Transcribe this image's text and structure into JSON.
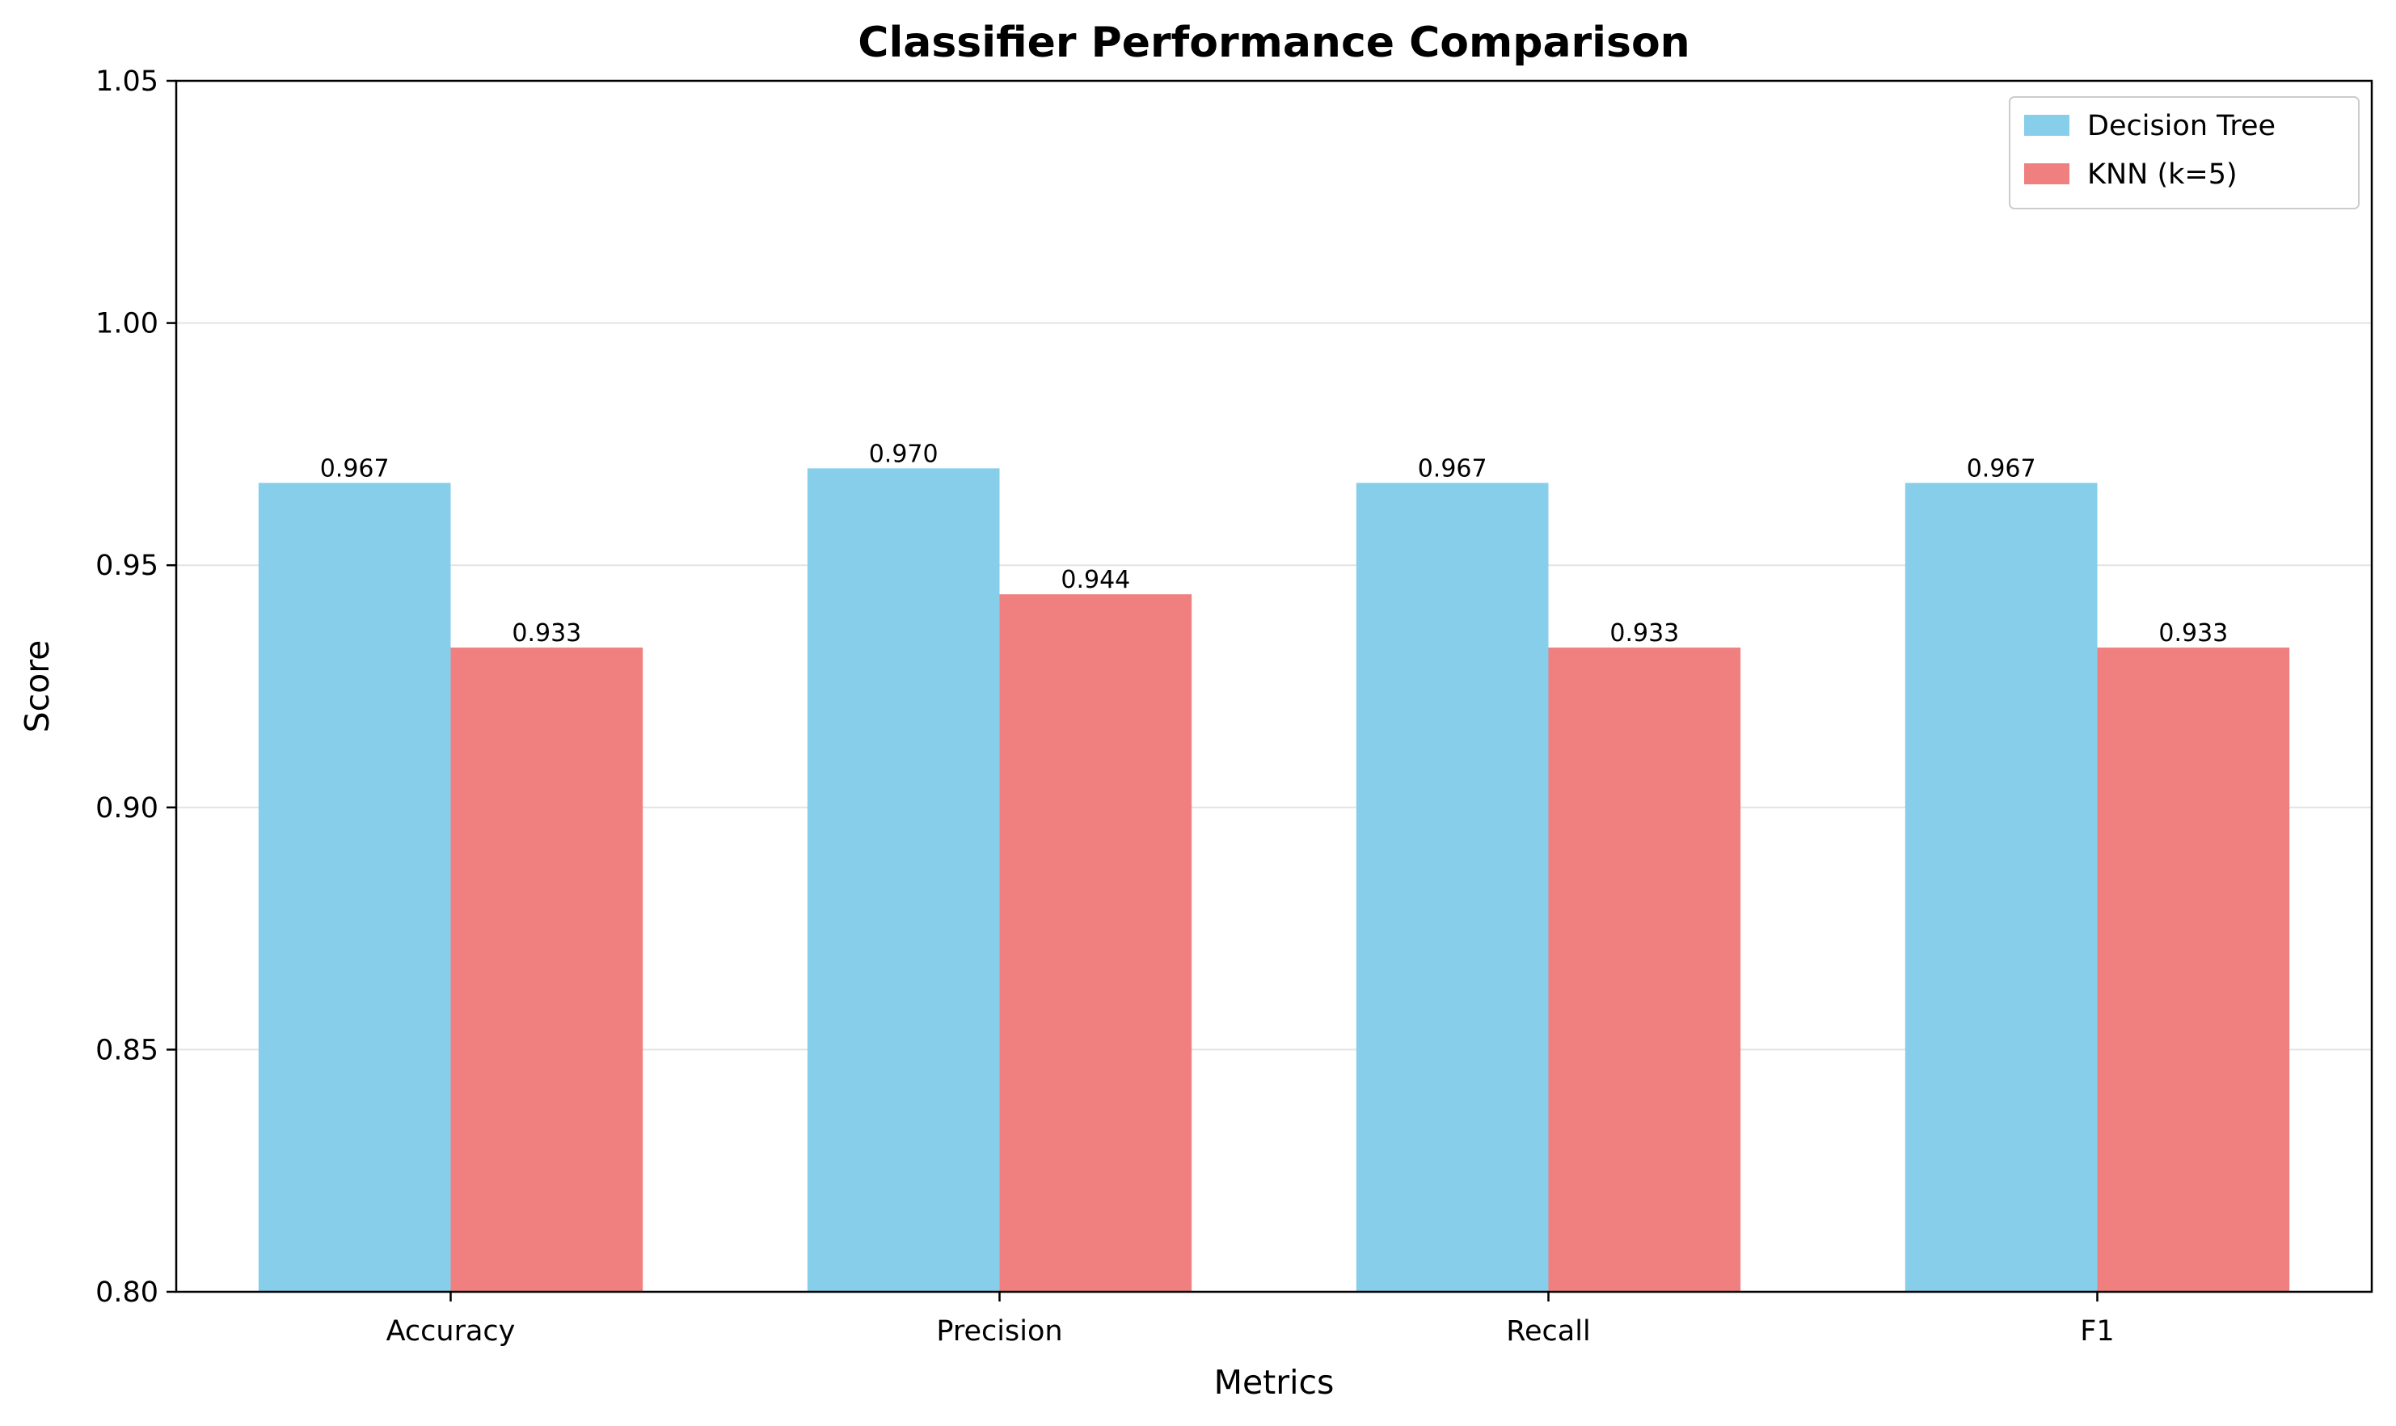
{
  "chart_data": {
    "type": "bar",
    "title": "Classifier Performance Comparison",
    "xlabel": "Metrics",
    "ylabel": "Score",
    "ylim": [
      0.8,
      1.05
    ],
    "yticks": [
      "0.80",
      "0.85",
      "0.90",
      "0.95",
      "1.00",
      "1.05"
    ],
    "grid": "horizontal",
    "legend_position": "top-right",
    "categories": [
      "Accuracy",
      "Precision",
      "Recall",
      "F1"
    ],
    "series": [
      {
        "name": "Decision Tree",
        "color": "#87ceeb",
        "values": [
          0.967,
          0.97,
          0.967,
          0.967
        ],
        "labels": [
          "0.967",
          "0.970",
          "0.967",
          "0.967"
        ]
      },
      {
        "name": "KNN (k=5)",
        "color": "#f08080",
        "values": [
          0.933,
          0.944,
          0.933,
          0.933
        ],
        "labels": [
          "0.933",
          "0.944",
          "0.933",
          "0.933"
        ]
      }
    ]
  }
}
